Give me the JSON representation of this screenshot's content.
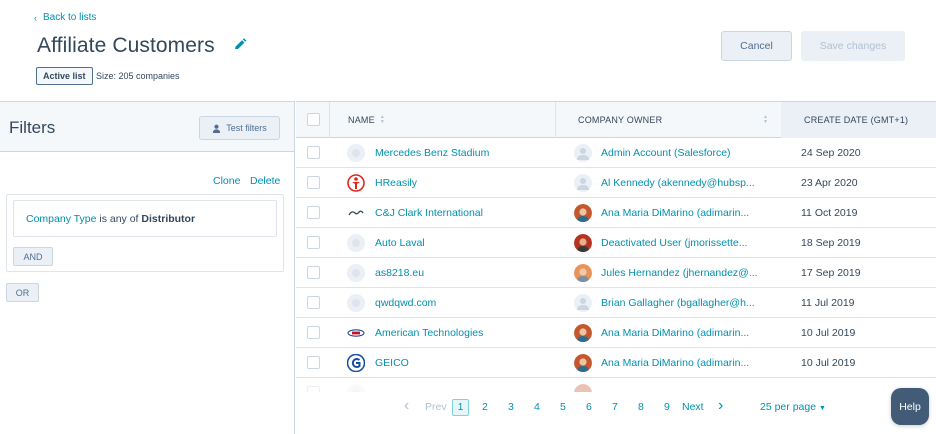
{
  "header": {
    "back_label": "Back to lists",
    "title": "Affiliate Customers",
    "badge": "Active list",
    "size": "Size: 205 companies",
    "cancel_label": "Cancel",
    "save_label": "Save changes"
  },
  "filters": {
    "title": "Filters",
    "test_label": "Test filters",
    "clone_label": "Clone",
    "delete_label": "Delete",
    "filter": {
      "property": "Company Type",
      "operator": " is any of ",
      "value": "Distributor"
    },
    "and_label": "AND",
    "or_label": "OR"
  },
  "table": {
    "columns": [
      "NAME",
      "COMPANY OWNER",
      "CREATE DATE (GMT+1)"
    ],
    "rows": [
      {
        "name": "Mercedes Benz Stadium",
        "owner": "Admin Account (Salesforce)",
        "date": "24 Sep 2020",
        "logo": "default",
        "avatar": "default"
      },
      {
        "name": "HReasily",
        "owner": "Al Kennedy (akennedy@hubsp...",
        "date": "23 Apr 2020",
        "logo": "hreasily",
        "avatar": "default"
      },
      {
        "name": "C&J Clark International",
        "owner": "Ana Maria DiMarino (adimarin...",
        "date": "11 Oct 2019",
        "logo": "clarks",
        "avatar": "photo-ana"
      },
      {
        "name": "Auto Laval",
        "owner": "Deactivated User (jmorissette...",
        "date": "18 Sep 2019",
        "logo": "default",
        "avatar": "photo-deactivated"
      },
      {
        "name": "as8218.eu",
        "owner": "Jules Hernandez (jhernandez@...",
        "date": "17 Sep 2019",
        "logo": "default",
        "avatar": "photo-jules"
      },
      {
        "name": "qwdqwd.com",
        "owner": "Brian Gallagher (bgallagher@h...",
        "date": "11 Jul 2019",
        "logo": "default",
        "avatar": "default"
      },
      {
        "name": "American Technologies",
        "owner": "Ana Maria DiMarino (adimarin...",
        "date": "10 Jul 2019",
        "logo": "ati",
        "avatar": "photo-ana"
      },
      {
        "name": "GEICO",
        "owner": "Ana Maria DiMarino (adimarin...",
        "date": "10 Jul 2019",
        "logo": "geico",
        "avatar": "photo-ana"
      }
    ]
  },
  "pagination": {
    "prev_label": "Prev",
    "next_label": "Next",
    "pages": [
      "1",
      "2",
      "3",
      "4",
      "5",
      "6",
      "7",
      "8",
      "9"
    ],
    "current": "1",
    "per_page": "25 per page"
  },
  "help_label": "Help",
  "colors": {
    "link": "#0091ae",
    "text": "#33475b",
    "panel_bg": "#f5f8fa",
    "help_bg": "#425b76"
  }
}
